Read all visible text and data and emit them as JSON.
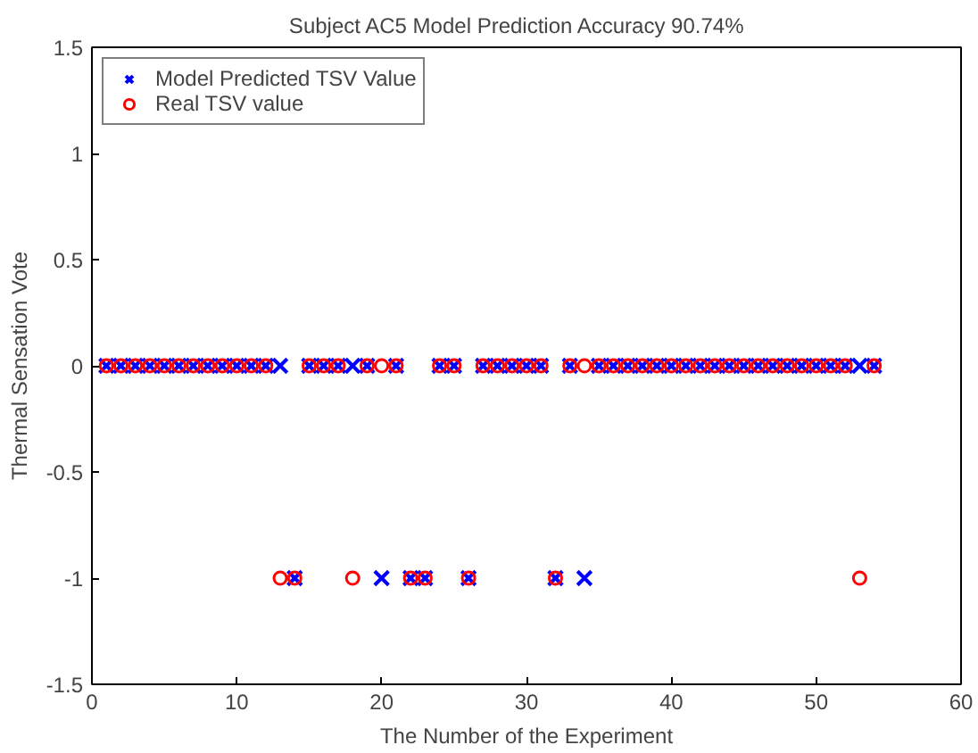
{
  "chart_data": {
    "type": "scatter",
    "title": "Subject AC5    Model Prediction Accuracy 90.74%",
    "xlabel": "The Number of the Experiment",
    "ylabel": "Thermal Sensation Vote",
    "x": [
      1,
      2,
      3,
      4,
      5,
      6,
      7,
      8,
      9,
      10,
      11,
      12,
      13,
      14,
      15,
      16,
      17,
      18,
      19,
      20,
      21,
      22,
      23,
      24,
      25,
      26,
      27,
      28,
      29,
      30,
      31,
      32,
      33,
      34,
      35,
      36,
      37,
      38,
      39,
      40,
      41,
      42,
      43,
      44,
      45,
      46,
      47,
      48,
      49,
      50,
      51,
      52,
      53,
      54
    ],
    "series": [
      {
        "name": "Model Predicted TSV Value",
        "color": "#0000ff",
        "marker": "cross",
        "values": [
          0,
          0,
          0,
          0,
          0,
          0,
          0,
          0,
          0,
          0,
          0,
          0,
          0,
          -1,
          0,
          0,
          0,
          0,
          0,
          -1,
          0,
          -1,
          -1,
          0,
          0,
          -1,
          0,
          0,
          0,
          0,
          0,
          -1,
          0,
          -1,
          0,
          0,
          0,
          0,
          0,
          0,
          0,
          0,
          0,
          0,
          0,
          0,
          0,
          0,
          0,
          0,
          0,
          0,
          0,
          0
        ]
      },
      {
        "name": "Real TSV value",
        "color": "#ff0000",
        "marker": "circle",
        "values": [
          0,
          0,
          0,
          0,
          0,
          0,
          0,
          0,
          0,
          0,
          0,
          0,
          -1,
          -1,
          0,
          0,
          0,
          -1,
          0,
          0,
          0,
          -1,
          -1,
          0,
          0,
          -1,
          0,
          0,
          0,
          0,
          0,
          -1,
          0,
          0,
          0,
          0,
          0,
          0,
          0,
          0,
          0,
          0,
          0,
          0,
          0,
          0,
          0,
          0,
          0,
          0,
          0,
          0,
          -1,
          0
        ]
      }
    ],
    "xlim": [
      0,
      60
    ],
    "xticks": [
      0,
      10,
      20,
      30,
      40,
      50,
      60
    ],
    "ylim": [
      -1.5,
      1.5
    ],
    "yticks": [
      -1.5,
      -1,
      -0.5,
      0,
      0.5,
      1,
      1.5
    ],
    "grid": false,
    "legend": "top left"
  }
}
